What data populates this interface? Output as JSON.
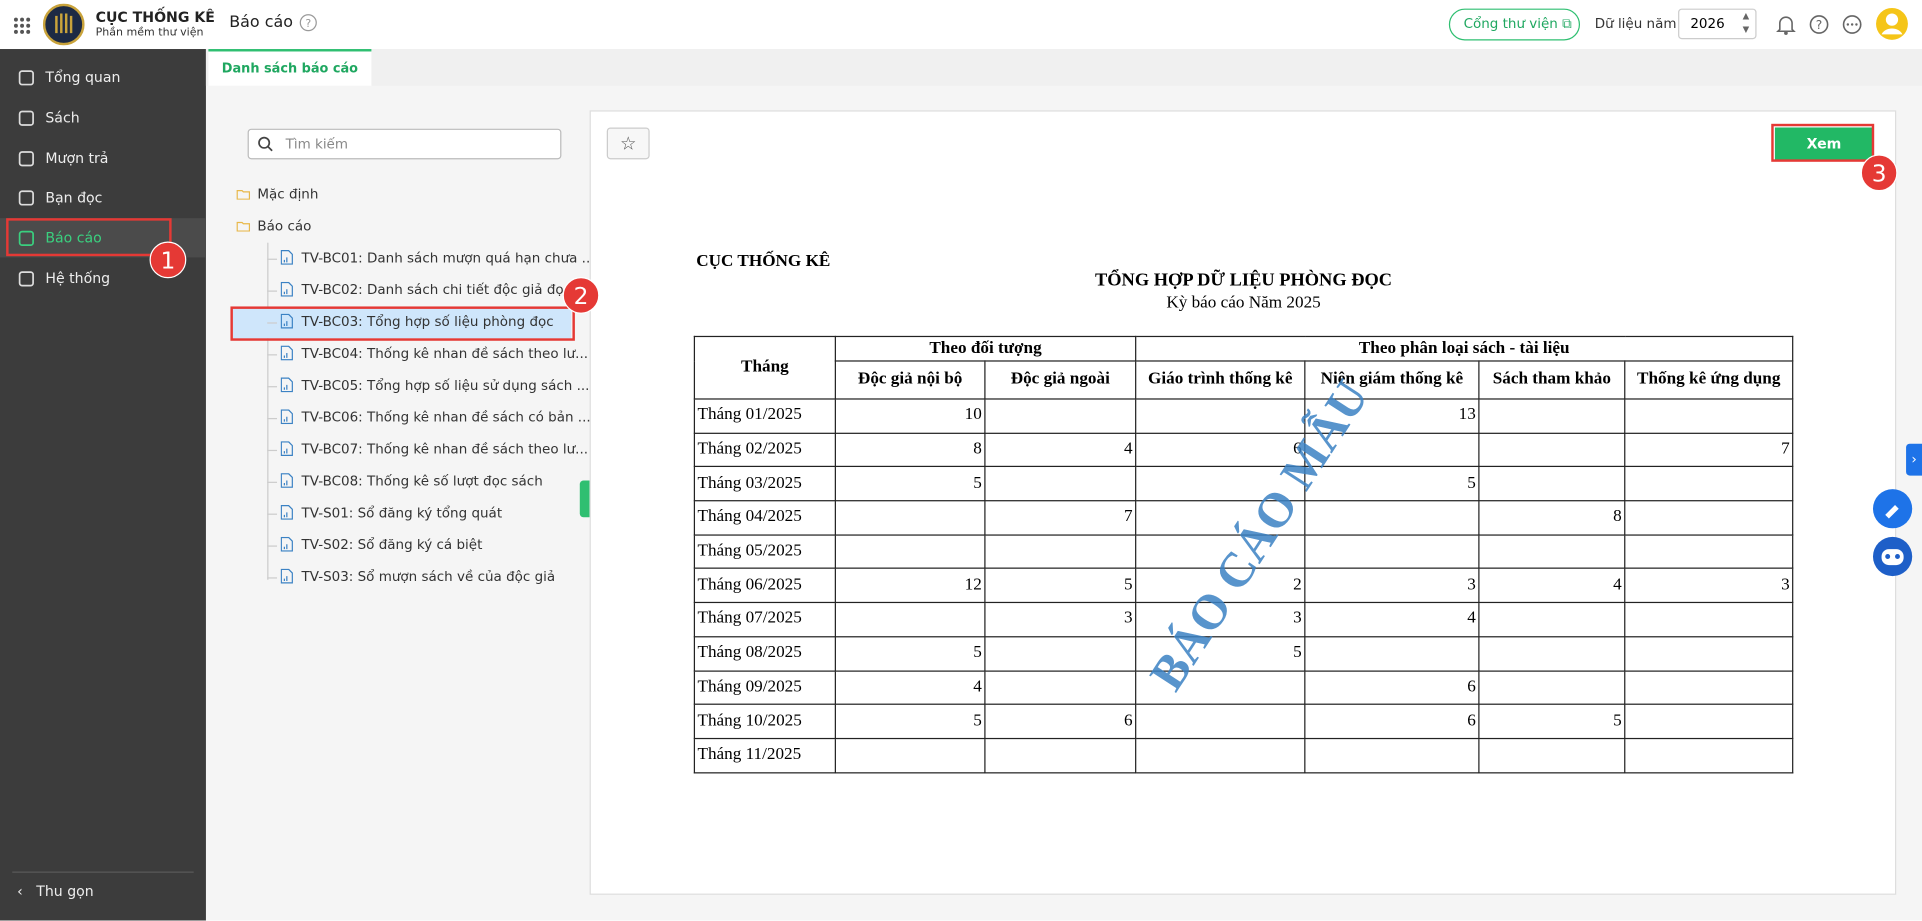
{
  "header": {
    "app_name": "CỤC THỐNG KÊ",
    "app_subtitle": "Phần mềm thư viện",
    "page_title": "Báo cáo",
    "portal_button": "Cổng thư viện",
    "year_label": "Dữ liệu năm",
    "year": "2026"
  },
  "sidebar": {
    "items": [
      "Tổng quan",
      "Sách",
      "Mượn trả",
      "Bạn đọc",
      "Báo cáo",
      "Hệ thống"
    ],
    "collapse": "Thu gọn"
  },
  "tabs": [
    "Danh sách báo cáo"
  ],
  "search_placeholder": "Tìm kiếm",
  "tree": {
    "folders": [
      "Mặc định",
      "Báo cáo"
    ],
    "reports": [
      "TV-BC01: Danh sách mượn quá hạn chưa ...",
      "TV-BC02: Danh sách chi tiết độc giả đọc ...",
      "TV-BC03: Tổng hợp số liệu phòng đọc",
      "TV-BC04: Thống kê nhan đề sách theo lư...",
      "TV-BC05: Tổng hợp số liệu sử dụng sách ...",
      "TV-BC06: Thống kê nhan đề sách có bản ...",
      "TV-BC07: Thống kê nhan đề sách theo lư...",
      "TV-BC08: Thống kê số lượt đọc sách",
      "TV-S01: Sổ đăng ký tổng quát",
      "TV-S02: Sổ đăng ký cá biệt",
      "TV-S03: Sổ mượn sách về của độc giả"
    ]
  },
  "report": {
    "view_button": "Xem",
    "org": "CỤC THỐNG KÊ",
    "title": "TỔNG HỢP DỮ LIỆU PHÒNG ĐỌC",
    "period": "Kỳ báo cáo Năm 2025",
    "watermark": "BÁO CÁO MẪU",
    "table": {
      "month_header": "Tháng",
      "groups": [
        {
          "label": "Theo đối tượng",
          "columns": [
            "Độc giả nội bộ",
            "Độc giả ngoài"
          ]
        },
        {
          "label": "Theo phân loại sách - tài liệu",
          "columns": [
            "Giáo trình thống kê",
            "Niên giám thống kê",
            "Sách tham khảo",
            "Thống kê ứng dụng"
          ]
        }
      ],
      "rows": [
        {
          "month": "Tháng 01/2025",
          "values": [
            10,
            null,
            null,
            13,
            null,
            null
          ]
        },
        {
          "month": "Tháng 02/2025",
          "values": [
            8,
            4,
            6,
            null,
            null,
            7
          ]
        },
        {
          "month": "Tháng 03/2025",
          "values": [
            5,
            null,
            null,
            5,
            null,
            null
          ]
        },
        {
          "month": "Tháng 04/2025",
          "values": [
            null,
            7,
            null,
            null,
            8,
            null
          ]
        },
        {
          "month": "Tháng 05/2025",
          "values": [
            null,
            null,
            null,
            null,
            null,
            null
          ]
        },
        {
          "month": "Tháng 06/2025",
          "values": [
            12,
            5,
            2,
            3,
            4,
            3
          ]
        },
        {
          "month": "Tháng 07/2025",
          "values": [
            null,
            3,
            3,
            4,
            null,
            null
          ]
        },
        {
          "month": "Tháng 08/2025",
          "values": [
            5,
            null,
            5,
            null,
            null,
            null
          ]
        },
        {
          "month": "Tháng 09/2025",
          "values": [
            4,
            null,
            null,
            6,
            null,
            null
          ]
        },
        {
          "month": "Tháng 10/2025",
          "values": [
            5,
            6,
            null,
            6,
            5,
            null
          ]
        },
        {
          "month": "Tháng 11/2025",
          "values": [
            null,
            null,
            null,
            null,
            null,
            null
          ]
        }
      ]
    }
  },
  "annotations": [
    1,
    2,
    3
  ]
}
